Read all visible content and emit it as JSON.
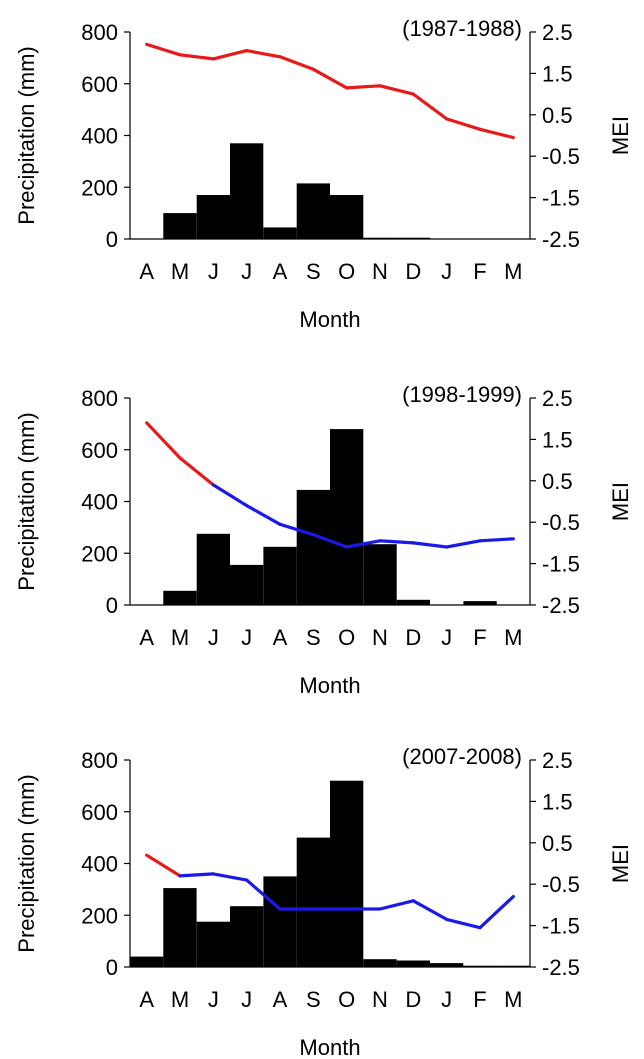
{
  "chart_data": [
    {
      "type": "bar",
      "title": "(1987-1988)",
      "xlabel": "Month",
      "ylabel": "Precipitation (mm)",
      "y2label": "MEI",
      "categories": [
        "A",
        "M",
        "J",
        "J",
        "A",
        "S",
        "O",
        "N",
        "D",
        "J",
        "F",
        "M"
      ],
      "ylim": [
        0,
        800
      ],
      "yticks": [
        0,
        200,
        400,
        600,
        800
      ],
      "y2lim": [
        -2.5,
        2.5
      ],
      "y2ticks": [
        "2.5",
        "1.5",
        "0.5",
        "-0.5",
        "-1.5",
        "-2.5"
      ],
      "bar_series": {
        "name": "Precipitation",
        "values": [
          0,
          100,
          170,
          370,
          45,
          215,
          170,
          5,
          5,
          0,
          0,
          0
        ]
      },
      "mei_series": {
        "name": "MEI",
        "values": [
          2.2,
          1.95,
          1.85,
          2.05,
          1.9,
          1.6,
          1.15,
          1.2,
          1.0,
          0.4,
          0.15,
          -0.05
        ],
        "colors": [
          "#e8191a",
          "#e8191a",
          "#e8191a",
          "#e8191a",
          "#e8191a",
          "#e8191a",
          "#e8191a",
          "#e8191a",
          "#e8191a",
          "#e8191a",
          "#e8191a"
        ]
      }
    },
    {
      "type": "bar",
      "title": "(1998-1999)",
      "xlabel": "Month",
      "ylabel": "Precipitation (mm)",
      "y2label": "MEI",
      "categories": [
        "A",
        "M",
        "J",
        "J",
        "A",
        "S",
        "O",
        "N",
        "D",
        "J",
        "F",
        "M"
      ],
      "ylim": [
        0,
        800
      ],
      "yticks": [
        0,
        200,
        400,
        600,
        800
      ],
      "y2lim": [
        -2.5,
        2.5
      ],
      "y2ticks": [
        "2.5",
        "1.5",
        "0.5",
        "-0.5",
        "-1.5",
        "-2.5"
      ],
      "bar_series": {
        "name": "Precipitation",
        "values": [
          0,
          55,
          275,
          155,
          225,
          445,
          680,
          235,
          20,
          0,
          15,
          0
        ]
      },
      "mei_series": {
        "name": "MEI",
        "values": [
          1.9,
          1.05,
          0.4,
          -0.1,
          -0.55,
          -0.8,
          -1.1,
          -0.95,
          -1.0,
          -1.1,
          -0.95,
          -0.9
        ],
        "colors": [
          "#e8191a",
          "#e8191a",
          "#1a1ae8",
          "#1a1ae8",
          "#1a1ae8",
          "#1a1ae8",
          "#1a1ae8",
          "#1a1ae8",
          "#1a1ae8",
          "#1a1ae8",
          "#1a1ae8"
        ]
      }
    },
    {
      "type": "bar",
      "title": "(2007-2008)",
      "xlabel": "Month",
      "ylabel": "Precipitation (mm)",
      "y2label": "MEI",
      "categories": [
        "A",
        "M",
        "J",
        "J",
        "A",
        "S",
        "O",
        "N",
        "D",
        "J",
        "F",
        "M"
      ],
      "ylim": [
        0,
        800
      ],
      "yticks": [
        0,
        200,
        400,
        600,
        800
      ],
      "y2lim": [
        -2.5,
        2.5
      ],
      "y2ticks": [
        "2.5",
        "1.5",
        "0.5",
        "-0.5",
        "-1.5",
        "-2.5"
      ],
      "bar_series": {
        "name": "Precipitation",
        "values": [
          40,
          305,
          175,
          235,
          350,
          500,
          720,
          30,
          25,
          15,
          5,
          5
        ]
      },
      "mei_series": {
        "name": "MEI",
        "values": [
          0.2,
          -0.3,
          -0.25,
          -0.4,
          -1.1,
          -1.1,
          -1.1,
          -1.1,
          -0.9,
          -1.35,
          -1.55,
          -0.8
        ],
        "colors": [
          "#e8191a",
          "#1a1ae8",
          "#1a1ae8",
          "#1a1ae8",
          "#1a1ae8",
          "#1a1ae8",
          "#1a1ae8",
          "#1a1ae8",
          "#1a1ae8",
          "#1a1ae8",
          "#1a1ae8"
        ]
      }
    }
  ]
}
